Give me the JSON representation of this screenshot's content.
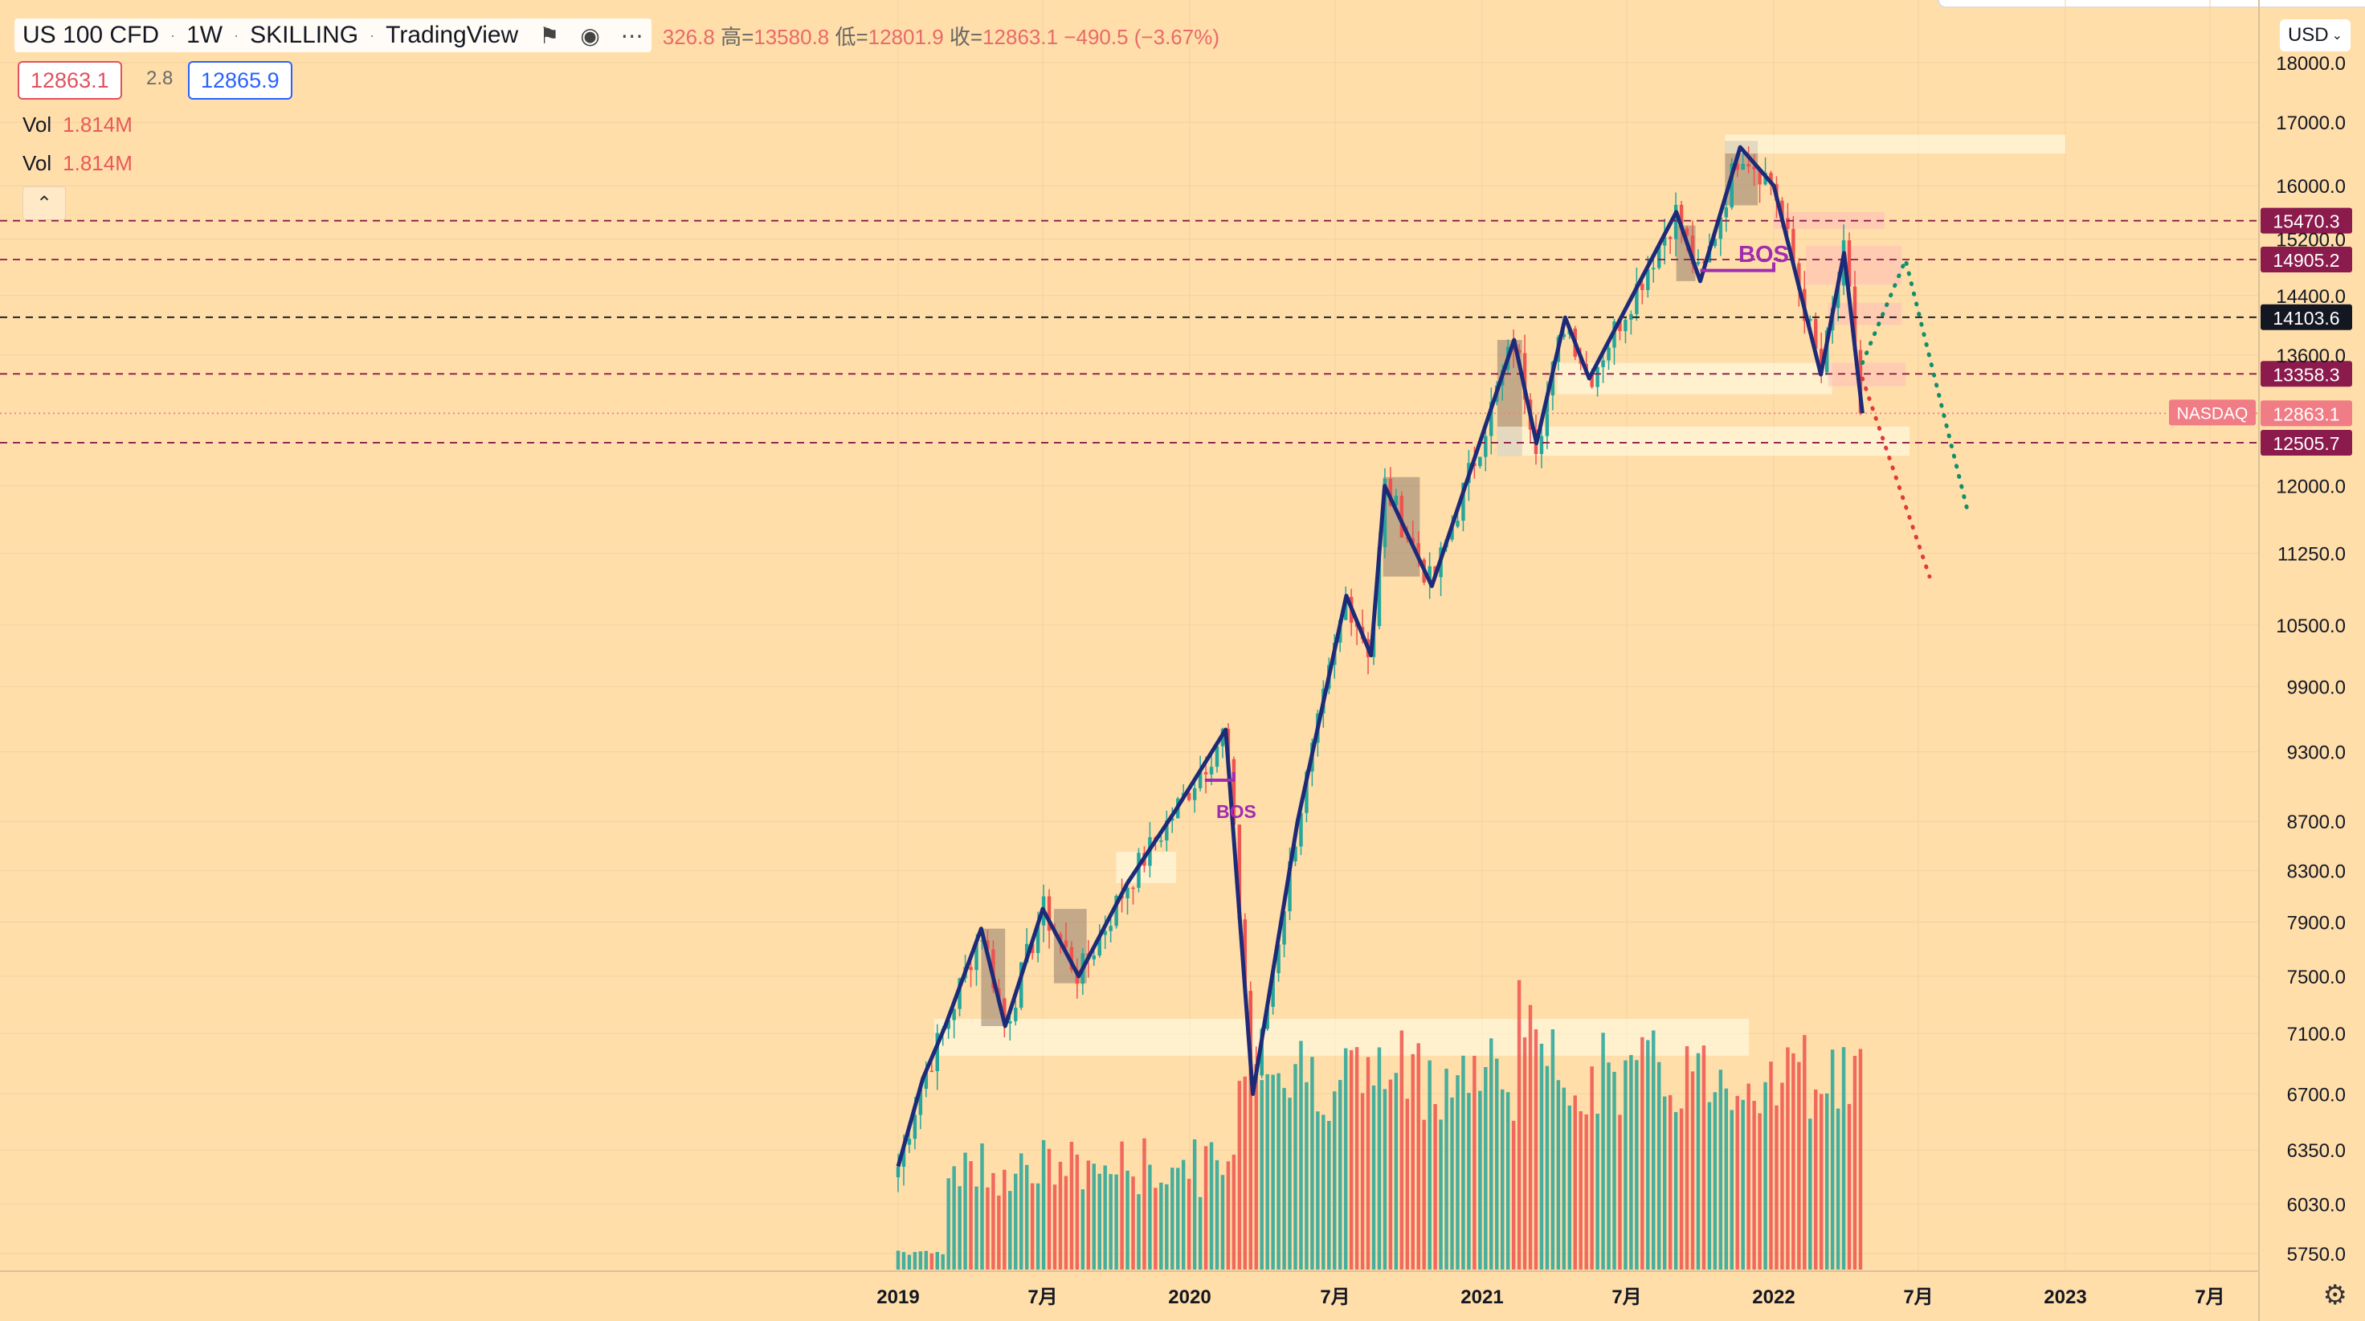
{
  "header": {
    "symbol": "US 100 CFD",
    "interval": "1W",
    "broker": "SKILLING",
    "platform": "TradingView",
    "open_fragment": "326.8",
    "high_label": "高=",
    "high": "13580.8",
    "low_label": "低=",
    "low": "12801.9",
    "close_label": "收=",
    "close": "12863.1",
    "change": "−490.5 (−3.67%)"
  },
  "quote": {
    "bid": "12863.1",
    "spread": "2.8",
    "ask": "12865.9"
  },
  "indicators": [
    {
      "label": "Vol",
      "value": "1.814M"
    },
    {
      "label": "Vol",
      "value": "1.814M"
    }
  ],
  "currency": "USD",
  "watermark_tag": "NASDAQ",
  "colors": {
    "background": "#ffdeaa",
    "up": "#26a69a",
    "down": "#ef5350",
    "trend": "#1d2a78",
    "bos": "#a12cb0",
    "level": "#8b1a4d"
  },
  "chart_data": {
    "type": "candlestick",
    "y_scale": "log",
    "y_axis_ticks": [
      "18000.0",
      "17000.0",
      "16000.0",
      "15200.0",
      "14400.0",
      "13600.0",
      "12000.0",
      "11250.0",
      "10500.0",
      "9900.0",
      "9300.0",
      "8700.0",
      "8300.0",
      "7900.0",
      "7500.0",
      "7100.0",
      "6700.0",
      "6350.0",
      "6030.0",
      "5750.0"
    ],
    "x_axis_ticks": [
      "2019",
      "7月",
      "2020",
      "7月",
      "2021",
      "7月",
      "2022",
      "7月",
      "2023",
      "7月"
    ],
    "price_levels": [
      {
        "value": "15470.3",
        "label_color": "#8b1a4d",
        "line": "dashed"
      },
      {
        "value": "14905.2",
        "label_color": "#8b1a4d",
        "line": "dashed"
      },
      {
        "value": "14103.6",
        "label_color": "#131722",
        "line": "dashed-black"
      },
      {
        "value": "13358.3",
        "label_color": "#8b1a4d",
        "line": "dashed"
      },
      {
        "value": "12863.1",
        "label_color": "#f07c85",
        "line": "dotted"
      },
      {
        "value": "12505.7",
        "label_color": "#8b1a4d",
        "line": "dashed"
      }
    ],
    "annotations": [
      "BOS",
      "BOS"
    ],
    "weekly_close_path": [
      [
        "2019-01-01",
        6250
      ],
      [
        "2019-02-01",
        6800
      ],
      [
        "2019-03-01",
        7150
      ],
      [
        "2019-04-15",
        7850
      ],
      [
        "2019-05-15",
        7150
      ],
      [
        "2019-07-01",
        8000
      ],
      [
        "2019-08-15",
        7500
      ],
      [
        "2019-10-15",
        8200
      ],
      [
        "2019-12-15",
        8800
      ],
      [
        "2020-02-15",
        9500
      ],
      [
        "2020-03-20",
        6700
      ],
      [
        "2020-05-15",
        8700
      ],
      [
        "2020-07-15",
        10800
      ],
      [
        "2020-08-15",
        10200
      ],
      [
        "2020-09-01",
        12000
      ],
      [
        "2020-10-30",
        10900
      ],
      [
        "2021-02-10",
        13800
      ],
      [
        "2021-03-10",
        12500
      ],
      [
        "2021-04-15",
        14100
      ],
      [
        "2021-05-15",
        13300
      ],
      [
        "2021-09-01",
        15600
      ],
      [
        "2021-10-01",
        14600
      ],
      [
        "2021-11-20",
        16600
      ],
      [
        "2022-01-01",
        16000
      ],
      [
        "2022-03-01",
        13350
      ],
      [
        "2022-03-30",
        15000
      ],
      [
        "2022-04-22",
        12863
      ]
    ],
    "projections": [
      {
        "style": "red-dotted",
        "points": [
          [
            "2022-04-22",
            13300
          ],
          [
            "2022-07-15",
            11000
          ]
        ]
      },
      {
        "style": "green-dotted",
        "points": [
          [
            "2022-04-22",
            13500
          ],
          [
            "2022-06-15",
            14900
          ],
          [
            "2022-09-01",
            11700
          ]
        ]
      }
    ],
    "volume": "histogram"
  }
}
